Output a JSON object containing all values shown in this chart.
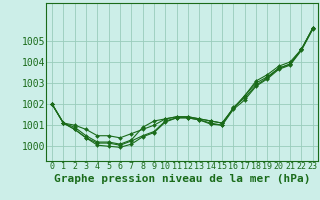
{
  "title": "",
  "xlabel": "Graphe pression niveau de la mer (hPa)",
  "ylabel": "",
  "bg_color": "#cceee8",
  "grid_color": "#99ccbb",
  "line_color": "#1a6b1a",
  "marker_color": "#1a6b1a",
  "ylim": [
    999.3,
    1006.8
  ],
  "xlim": [
    -0.5,
    23.5
  ],
  "yticks": [
    1000,
    1001,
    1002,
    1003,
    1004,
    1005
  ],
  "xticks": [
    0,
    1,
    2,
    3,
    4,
    5,
    6,
    7,
    8,
    9,
    10,
    11,
    12,
    13,
    14,
    15,
    16,
    17,
    18,
    19,
    20,
    21,
    22,
    23
  ],
  "series": [
    [
      1002.0,
      1001.1,
      1001.0,
      1000.8,
      1000.5,
      1000.5,
      1000.4,
      1000.6,
      1000.8,
      1001.0,
      1001.3,
      1001.4,
      1001.4,
      1001.3,
      1001.2,
      1001.1,
      1001.8,
      1002.4,
      1003.0,
      1003.3,
      1003.7,
      1003.9,
      1004.6,
      1005.6
    ],
    [
      1002.0,
      1001.1,
      1000.9,
      1000.5,
      1000.2,
      1000.2,
      1000.1,
      1000.3,
      1000.9,
      1001.2,
      1001.3,
      1001.4,
      1001.4,
      1001.3,
      1001.2,
      1001.1,
      1001.8,
      1002.4,
      1003.1,
      1003.4,
      1003.8,
      1004.0,
      1004.6,
      1005.6
    ],
    [
      1002.0,
      1001.1,
      1000.8,
      1000.4,
      1000.15,
      1000.15,
      1000.05,
      1000.25,
      1000.5,
      1000.7,
      1001.2,
      1001.35,
      1001.35,
      1001.25,
      1001.1,
      1001.0,
      1001.85,
      1002.3,
      1002.9,
      1003.25,
      1003.7,
      1003.9,
      1004.6,
      1005.6
    ],
    [
      1002.0,
      1001.1,
      1000.8,
      1000.4,
      1000.05,
      1000.0,
      999.95,
      1000.1,
      1000.45,
      1000.65,
      1001.15,
      1001.35,
      1001.35,
      1001.25,
      1001.05,
      1001.0,
      1001.75,
      1002.2,
      1002.85,
      1003.2,
      1003.65,
      1003.85,
      1004.55,
      1005.55
    ]
  ],
  "xlabel_fontsize": 8,
  "ytick_fontsize": 7,
  "xtick_fontsize": 6
}
